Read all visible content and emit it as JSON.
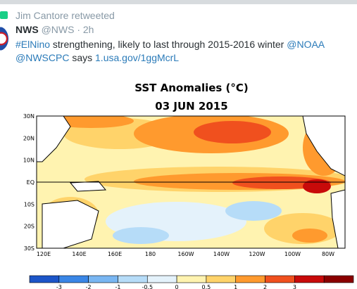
{
  "retweet": {
    "text": "Jim Cantore retweeted",
    "icon": "retweet-icon"
  },
  "tweet": {
    "author_name": "NWS",
    "handle": "@NWS",
    "separator": " · ",
    "time": "2h",
    "hashtag": "#ElNino",
    "text_main": " strengthening, likely to last through 2015-2016 winter ",
    "mention1": "@NOAA",
    "mention2": "@NWSCPC",
    "says": " says  ",
    "url": "1.usa.gov/1ggMcrL"
  },
  "map": {
    "title": "SST Anomalies (°C)",
    "date": "03 JUN 2015",
    "lat_labels": [
      "30N",
      "20N",
      "10N",
      "EQ",
      "10S",
      "20S",
      "30S"
    ],
    "lon_labels": [
      "120E",
      "140E",
      "160E",
      "180",
      "160W",
      "140W",
      "120W",
      "100W",
      "80W"
    ],
    "colorbar_labels": [
      "-3",
      "-2",
      "-1",
      "-0.5",
      "0",
      "0.5",
      "1",
      "2",
      "3"
    ],
    "colorbar_colors": [
      "#1c55c8",
      "#3a86e6",
      "#79b6f2",
      "#b6dcf8",
      "#e4f2fb",
      "#fff3b0",
      "#ffd36a",
      "#ff9a2e",
      "#f0501e",
      "#c80a0a",
      "#8a0000"
    ]
  }
}
